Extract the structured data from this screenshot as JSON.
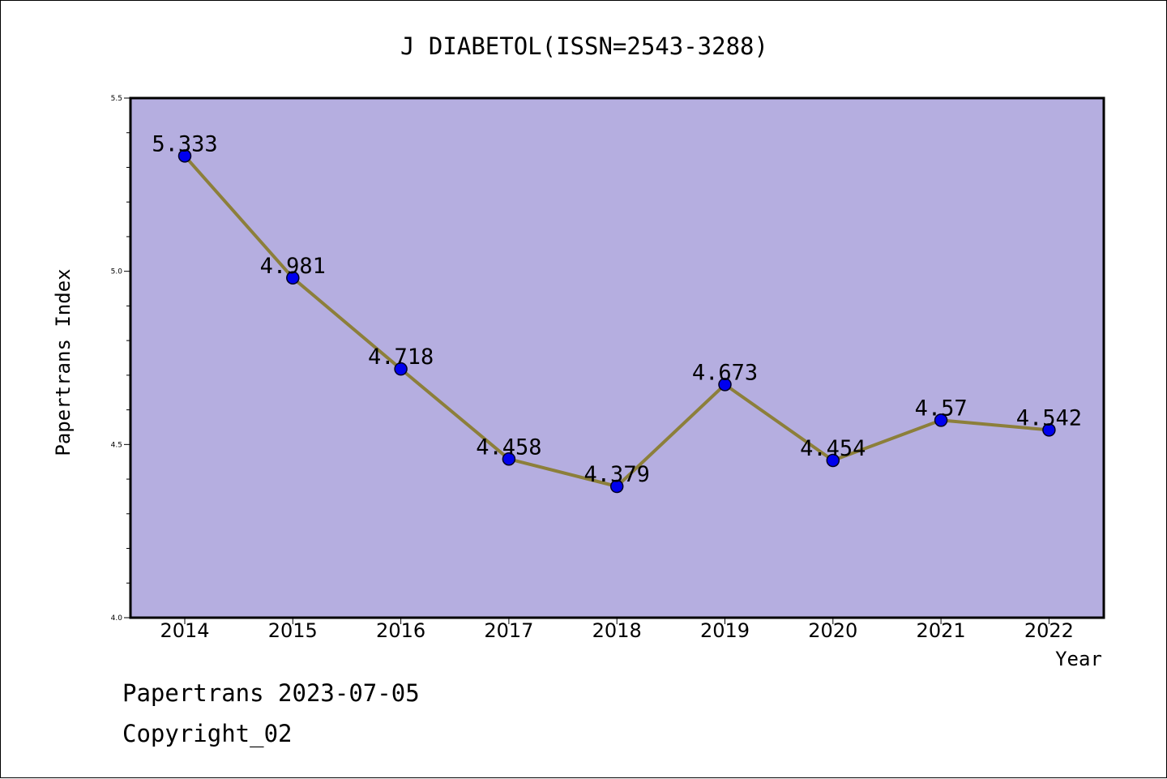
{
  "chart_data": {
    "type": "line",
    "title": "J DIABETOL(ISSN=2543-3288)",
    "xlabel": "Year",
    "ylabel": "Papertrans Index",
    "categories": [
      "2014",
      "2015",
      "2016",
      "2017",
      "2018",
      "2019",
      "2020",
      "2021",
      "2022"
    ],
    "series": [
      {
        "values": [
          5.333,
          4.981,
          4.718,
          4.458,
          4.379,
          4.673,
          4.454,
          4.57,
          4.542
        ],
        "labels": [
          "5.333",
          "4.981",
          "4.718",
          "4.458",
          "4.379",
          "4.673",
          "4.454",
          "4.57",
          "4.542"
        ]
      }
    ],
    "ylim": [
      4.0,
      5.5
    ],
    "yticks": [
      "4.0",
      "4.5",
      "5.0",
      "5.5"
    ],
    "grid": false,
    "colors": {
      "plot_background": "#b5aee0",
      "line": "#8c7f3a",
      "marker": "#0000ee"
    }
  },
  "footer": {
    "date_line": "Papertrans 2023-07-05",
    "copyright": "Copyright_02"
  }
}
